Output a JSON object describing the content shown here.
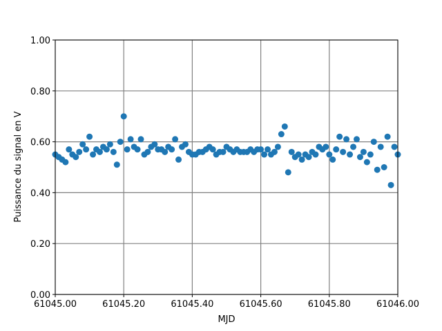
{
  "chart_data": {
    "type": "scatter",
    "xlabel": "MJD",
    "ylabel": "Puissance du signal en V",
    "color": "#1f77b4",
    "grid": true,
    "x": [
      61045.0,
      61045.01,
      61045.02,
      61045.03,
      61045.04,
      61045.05,
      61045.06,
      61045.07,
      61045.08,
      61045.09,
      61045.1,
      61045.11,
      61045.12,
      61045.13,
      61045.14,
      61045.15,
      61045.16,
      61045.17,
      61045.18,
      61045.19,
      61045.2,
      61045.21,
      61045.22,
      61045.23,
      61045.24,
      61045.25,
      61045.26,
      61045.27,
      61045.28,
      61045.29,
      61045.3,
      61045.31,
      61045.32,
      61045.33,
      61045.34,
      61045.35,
      61045.36,
      61045.37,
      61045.38,
      61045.39,
      61045.4,
      61045.41,
      61045.42,
      61045.43,
      61045.44,
      61045.45,
      61045.46,
      61045.47,
      61045.48,
      61045.49,
      61045.5,
      61045.51,
      61045.52,
      61045.53,
      61045.54,
      61045.55,
      61045.56,
      61045.57,
      61045.58,
      61045.59,
      61045.6,
      61045.61,
      61045.62,
      61045.63,
      61045.64,
      61045.65,
      61045.66,
      61045.67,
      61045.68,
      61045.69,
      61045.7,
      61045.71,
      61045.72,
      61045.73,
      61045.74,
      61045.75,
      61045.76,
      61045.77,
      61045.78,
      61045.79,
      61045.8,
      61045.81,
      61045.82,
      61045.83,
      61045.84,
      61045.85,
      61045.86,
      61045.87,
      61045.88,
      61045.89,
      61045.9,
      61045.91,
      61045.92,
      61045.93,
      61045.94,
      61045.95,
      61045.96,
      61045.97,
      61045.98,
      61045.99,
      61046.0
    ],
    "values": [
      0.55,
      0.54,
      0.53,
      0.52,
      0.57,
      0.55,
      0.54,
      0.56,
      0.59,
      0.57,
      0.62,
      0.55,
      0.57,
      0.56,
      0.58,
      0.57,
      0.59,
      0.56,
      0.51,
      0.6,
      0.7,
      0.57,
      0.61,
      0.58,
      0.57,
      0.61,
      0.55,
      0.56,
      0.58,
      0.59,
      0.57,
      0.57,
      0.56,
      0.58,
      0.57,
      0.61,
      0.53,
      0.58,
      0.59,
      0.56,
      0.55,
      0.55,
      0.56,
      0.56,
      0.57,
      0.58,
      0.57,
      0.55,
      0.56,
      0.56,
      0.58,
      0.57,
      0.56,
      0.57,
      0.56,
      0.56,
      0.56,
      0.57,
      0.56,
      0.57,
      0.57,
      0.55,
      0.57,
      0.55,
      0.56,
      0.58,
      0.63,
      0.66,
      0.48,
      0.56,
      0.54,
      0.55,
      0.53,
      0.55,
      0.54,
      0.56,
      0.55,
      0.58,
      0.57,
      0.58,
      0.55,
      0.53,
      0.57,
      0.62,
      0.56,
      0.61,
      0.55,
      0.58,
      0.61,
      0.54,
      0.56,
      0.52,
      0.55,
      0.6,
      0.49,
      0.58,
      0.5,
      0.62,
      0.43,
      0.58,
      0.55
    ],
    "xlim": [
      61045.0,
      61046.0
    ],
    "xticks": [
      {
        "value": 61045.0,
        "label": "61045.00"
      },
      {
        "value": 61045.2,
        "label": "61045.20"
      },
      {
        "value": 61045.4,
        "label": "61045.40"
      },
      {
        "value": 61045.6,
        "label": "61045.60"
      },
      {
        "value": 61045.8,
        "label": "61045.80"
      },
      {
        "value": 61046.0,
        "label": "61046.00"
      }
    ],
    "ylim": [
      0,
      1
    ],
    "yticks": [
      {
        "value": 0,
        "label": "0.00"
      },
      {
        "value": 0.2,
        "label": "0.20"
      },
      {
        "value": 0.4,
        "label": "0.40"
      },
      {
        "value": 0.6,
        "label": "0.60"
      },
      {
        "value": 0.8,
        "label": "0.80"
      },
      {
        "value": 1,
        "label": "1.00"
      }
    ]
  }
}
